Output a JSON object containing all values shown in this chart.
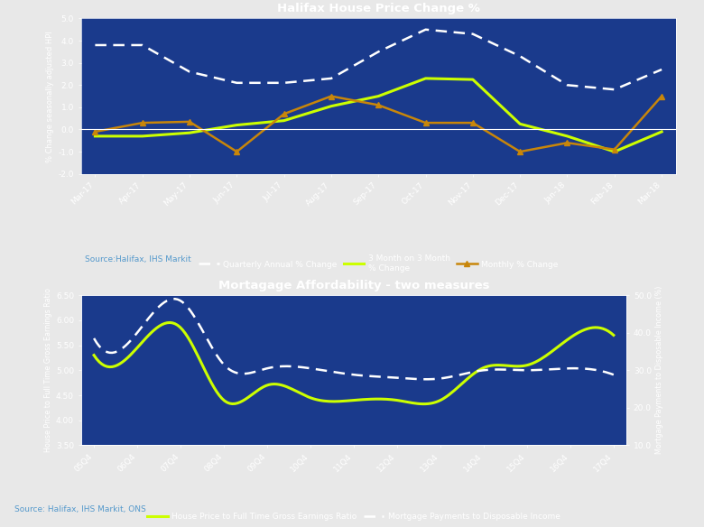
{
  "bg_color": "#1a3a8c",
  "outer_bg": "#e8e8e8",
  "chart1": {
    "title": "Halifax House Price Change %",
    "ylabel": "% Change seasonally adjusted HPI",
    "ylim": [
      -2.0,
      5.0
    ],
    "yticks": [
      -2.0,
      -1.0,
      0.0,
      1.0,
      2.0,
      3.0,
      4.0,
      5.0
    ],
    "ytick_labels": [
      "-2.0",
      "-1.0",
      "0.0",
      "1.0",
      "2.0",
      "3.0",
      "4.0",
      "5.0"
    ],
    "x_labels": [
      "Mar-17",
      "Apr-17",
      "May-17",
      "Jun-17",
      "Jul-17",
      "Aug-17",
      "Sep-17",
      "Oct-17",
      "Nov-17",
      "Dec-17",
      "Jan-18",
      "Feb-18",
      "Mar-18"
    ],
    "quarterly_annual": [
      3.8,
      3.8,
      2.6,
      2.1,
      2.1,
      2.3,
      3.5,
      4.5,
      4.3,
      3.3,
      2.0,
      1.8,
      2.7
    ],
    "three_month": [
      -0.3,
      -0.3,
      -0.15,
      0.2,
      0.4,
      1.05,
      1.5,
      2.3,
      2.25,
      0.25,
      -0.3,
      -1.0,
      -0.1
    ],
    "monthly": [
      -0.1,
      0.3,
      0.35,
      -1.0,
      0.7,
      1.5,
      1.1,
      0.3,
      0.3,
      -1.0,
      -0.6,
      -0.9,
      1.5
    ],
    "quarterly_color": "white",
    "three_month_color": "#ccff00",
    "monthly_color": "#c8860a",
    "source": "Source:Halifax, IHS Markit",
    "source_color": "#5599cc"
  },
  "chart2": {
    "title": "Mortagage Affordability - two measures",
    "ylabel_left": "House Price to Full Time Gross Earnings Ratio",
    "ylabel_right": "Mortgage Payments to Disposable Income (%)",
    "ylim_left": [
      3.5,
      6.5
    ],
    "ylim_right": [
      10.0,
      50.0
    ],
    "yticks_left": [
      3.5,
      4.0,
      4.5,
      5.0,
      5.5,
      6.0,
      6.5
    ],
    "ytick_labels_left": [
      "3.50",
      "4.00",
      "4.50",
      "5.00",
      "5.50",
      "6.00",
      "6.50"
    ],
    "yticks_right": [
      10.0,
      20.0,
      30.0,
      40.0,
      50.0
    ],
    "ytick_labels_right": [
      "10.0",
      "20.0",
      "30.0",
      "40.0",
      "50.0"
    ],
    "x_labels": [
      "05Q4",
      "06Q4",
      "07Q4",
      "08Q4",
      "09Q4",
      "10Q4",
      "11Q4",
      "12Q4",
      "13Q4",
      "14Q4",
      "15Q4",
      "16Q4",
      "17Q4"
    ],
    "house_price_ratio": [
      5.3,
      5.45,
      5.85,
      4.4,
      4.7,
      4.45,
      4.4,
      4.4,
      4.4,
      5.05,
      5.1,
      5.65,
      5.7
    ],
    "mortgage_payments": [
      38.5,
      40.0,
      48.5,
      31.5,
      30.5,
      30.5,
      28.8,
      28.0,
      27.8,
      30.0,
      30.0,
      30.5,
      28.8
    ],
    "house_price_color": "#ccff00",
    "mortgage_color": "white",
    "source": "Source: Halifax, IHS Markit, ONS",
    "source_color": "#5599cc"
  }
}
